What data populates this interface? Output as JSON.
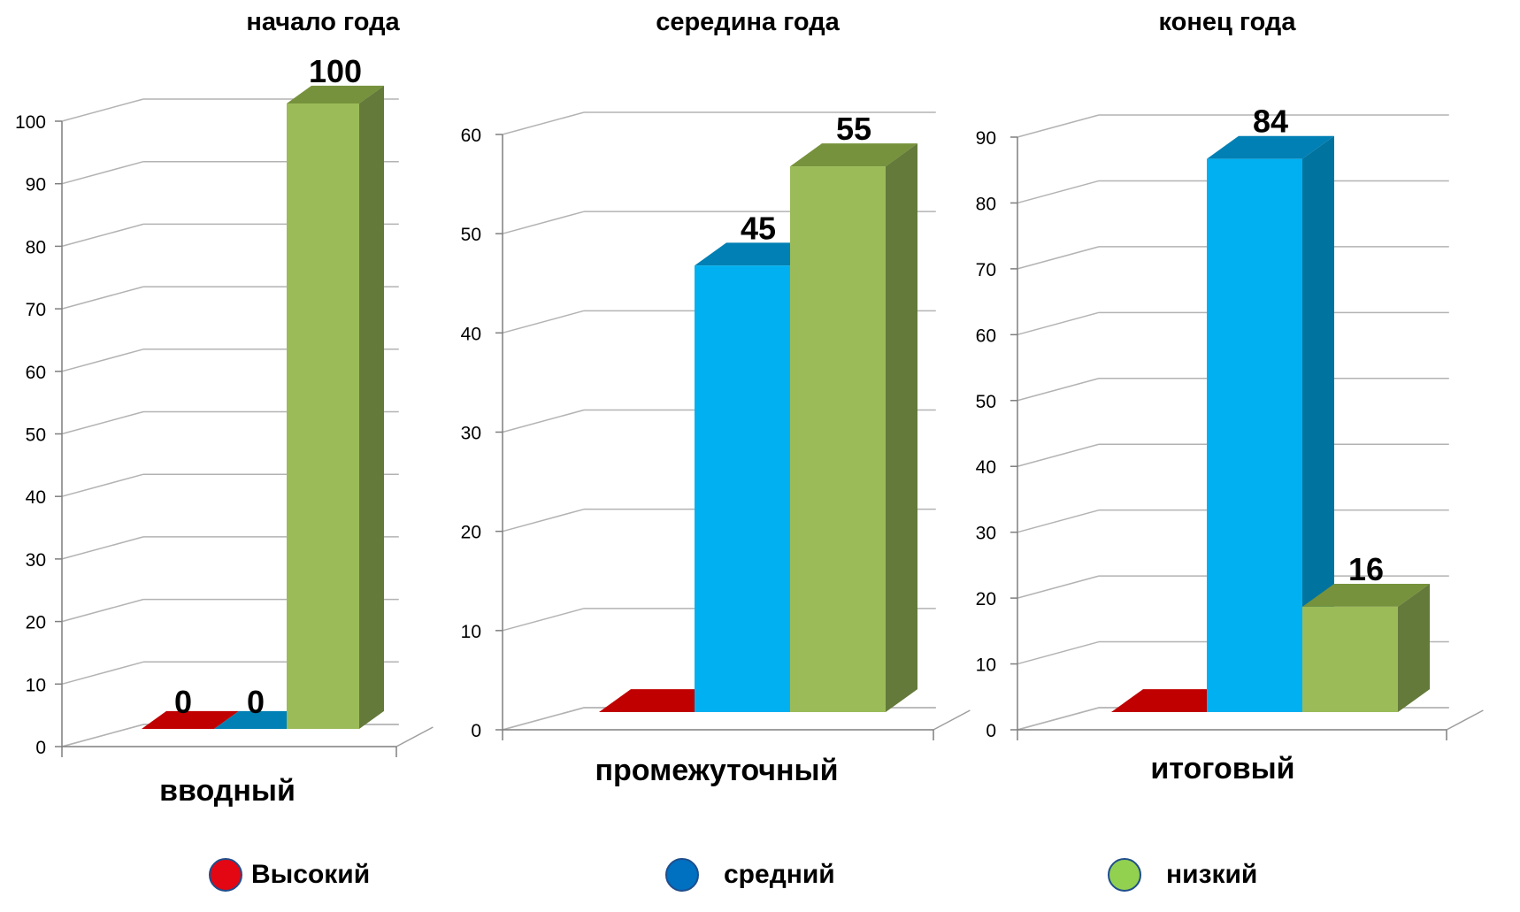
{
  "chart_data": [
    {
      "type": "bar",
      "title": "начало года",
      "category": "вводный",
      "ylim": [
        0,
        100
      ],
      "yticks": [
        0,
        10,
        20,
        30,
        40,
        50,
        60,
        70,
        80,
        90,
        100
      ],
      "grid": true,
      "series": [
        {
          "name": "Высокий",
          "value": 0,
          "label": "0"
        },
        {
          "name": "средний",
          "value": 0,
          "label": "0"
        },
        {
          "name": "низкий",
          "value": 100,
          "label": "100"
        }
      ]
    },
    {
      "type": "bar",
      "title": "середина года",
      "category": "промежуточный",
      "ylim": [
        0,
        60
      ],
      "yticks": [
        0,
        10,
        20,
        30,
        40,
        50,
        60
      ],
      "grid": true,
      "series": [
        {
          "name": "Высокий",
          "value": 0,
          "label": ""
        },
        {
          "name": "средний",
          "value": 45,
          "label": "45"
        },
        {
          "name": "низкий",
          "value": 55,
          "label": "55"
        }
      ]
    },
    {
      "type": "bar",
      "title": "конец года",
      "category": "итоговый",
      "ylim": [
        0,
        90
      ],
      "yticks": [
        0,
        10,
        20,
        30,
        40,
        50,
        60,
        70,
        80,
        90
      ],
      "grid": true,
      "series": [
        {
          "name": "Высокий",
          "value": 0,
          "label": ""
        },
        {
          "name": "средний",
          "value": 84,
          "label": "84"
        },
        {
          "name": "низкий",
          "value": 16,
          "label": "16"
        }
      ]
    }
  ],
  "legend": {
    "placement": "bottom",
    "items": [
      {
        "name": "Высокий",
        "color": "#e30613"
      },
      {
        "name": "средний",
        "color": "#0070c0"
      },
      {
        "name": "низкий",
        "color": "#92d050"
      }
    ]
  },
  "colors": {
    "high": {
      "front": "#e30613",
      "top": "#c00000",
      "side": "#8b0000"
    },
    "mid": {
      "front": "#00b0f0",
      "top": "#0080b4",
      "side": "#00739f"
    },
    "low": {
      "front": "#9bbb59",
      "top": "#76923c",
      "side": "#647a3a"
    },
    "grid": "#b3b3b3"
  }
}
